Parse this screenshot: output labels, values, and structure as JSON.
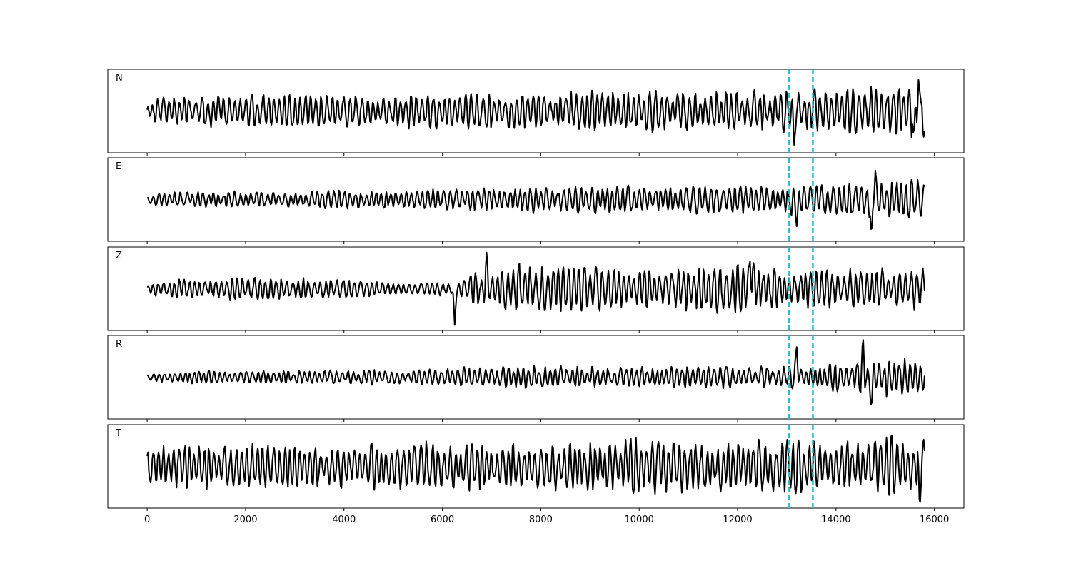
{
  "chart_data": {
    "type": "line",
    "title": "",
    "xlabel": "",
    "ylabel": "",
    "xlim": [
      -800,
      16600
    ],
    "x_ticks": [
      0,
      2000,
      4000,
      6000,
      8000,
      10000,
      12000,
      14000,
      16000
    ],
    "x_tick_labels": [
      "0",
      "2000",
      "4000",
      "6000",
      "8000",
      "10000",
      "12000",
      "14000",
      "16000"
    ],
    "grid": false,
    "legend": false,
    "line_color": "#000000",
    "marker_color": "#17becf",
    "markers_x": [
      13050,
      13530
    ],
    "x_end": 15800,
    "channels": [
      {
        "label": "N",
        "ylim": [
          -1.2,
          1.2
        ],
        "envelope": [
          0.45,
          0.5,
          0.5,
          0.5,
          0.55,
          0.55,
          0.5,
          0.55,
          0.6,
          0.6,
          0.65,
          0.65,
          0.7,
          0.7,
          0.65,
          0.7,
          0.6,
          0.7,
          0.75,
          0.9,
          1.0
        ],
        "peaks": [
          [
            13150,
            -1.0
          ],
          [
            15680,
            1.0
          ],
          [
            15580,
            -0.9
          ]
        ]
      },
      {
        "label": "E",
        "ylim": [
          -1.2,
          1.2
        ],
        "envelope": [
          0.2,
          0.25,
          0.25,
          0.25,
          0.25,
          0.3,
          0.3,
          0.3,
          0.35,
          0.4,
          0.45,
          0.45,
          0.45,
          0.4,
          0.45,
          0.45,
          0.5,
          0.5,
          0.55,
          0.6,
          0.7
        ],
        "peaks": [
          [
            14800,
            0.85
          ],
          [
            14720,
            -1.15
          ],
          [
            13200,
            -0.8
          ]
        ]
      },
      {
        "label": "Z",
        "ylim": [
          -1.2,
          1.2
        ],
        "envelope": [
          0.25,
          0.35,
          0.35,
          0.35,
          0.3,
          0.3,
          0.2,
          0.2,
          0.3,
          0.85,
          0.8,
          0.8,
          0.7,
          0.7,
          0.75,
          0.8,
          0.75,
          0.65,
          0.6,
          0.65,
          0.65
        ],
        "peaks": [
          [
            6250,
            -1.05
          ],
          [
            6900,
            1.05
          ],
          [
            12250,
            0.9
          ]
        ]
      },
      {
        "label": "R",
        "ylim": [
          -1.2,
          1.2
        ],
        "envelope": [
          0.15,
          0.2,
          0.2,
          0.2,
          0.2,
          0.25,
          0.25,
          0.25,
          0.3,
          0.35,
          0.35,
          0.35,
          0.3,
          0.35,
          0.35,
          0.35,
          0.35,
          0.35,
          0.5,
          0.6,
          0.6
        ],
        "peaks": [
          [
            13200,
            0.9
          ],
          [
            14550,
            1.15
          ],
          [
            14720,
            -0.9
          ]
        ]
      },
      {
        "label": "T",
        "ylim": [
          -1.2,
          1.2
        ],
        "envelope": [
          0.7,
          0.7,
          0.7,
          0.75,
          0.75,
          0.7,
          0.75,
          0.7,
          0.8,
          0.8,
          0.8,
          0.8,
          0.85,
          0.85,
          0.85,
          0.8,
          0.85,
          0.85,
          0.9,
          0.95,
          1.0
        ],
        "peaks": [
          [
            15130,
            0.9
          ],
          [
            15700,
            -1.15
          ],
          [
            15780,
            0.8
          ]
        ]
      }
    ]
  }
}
